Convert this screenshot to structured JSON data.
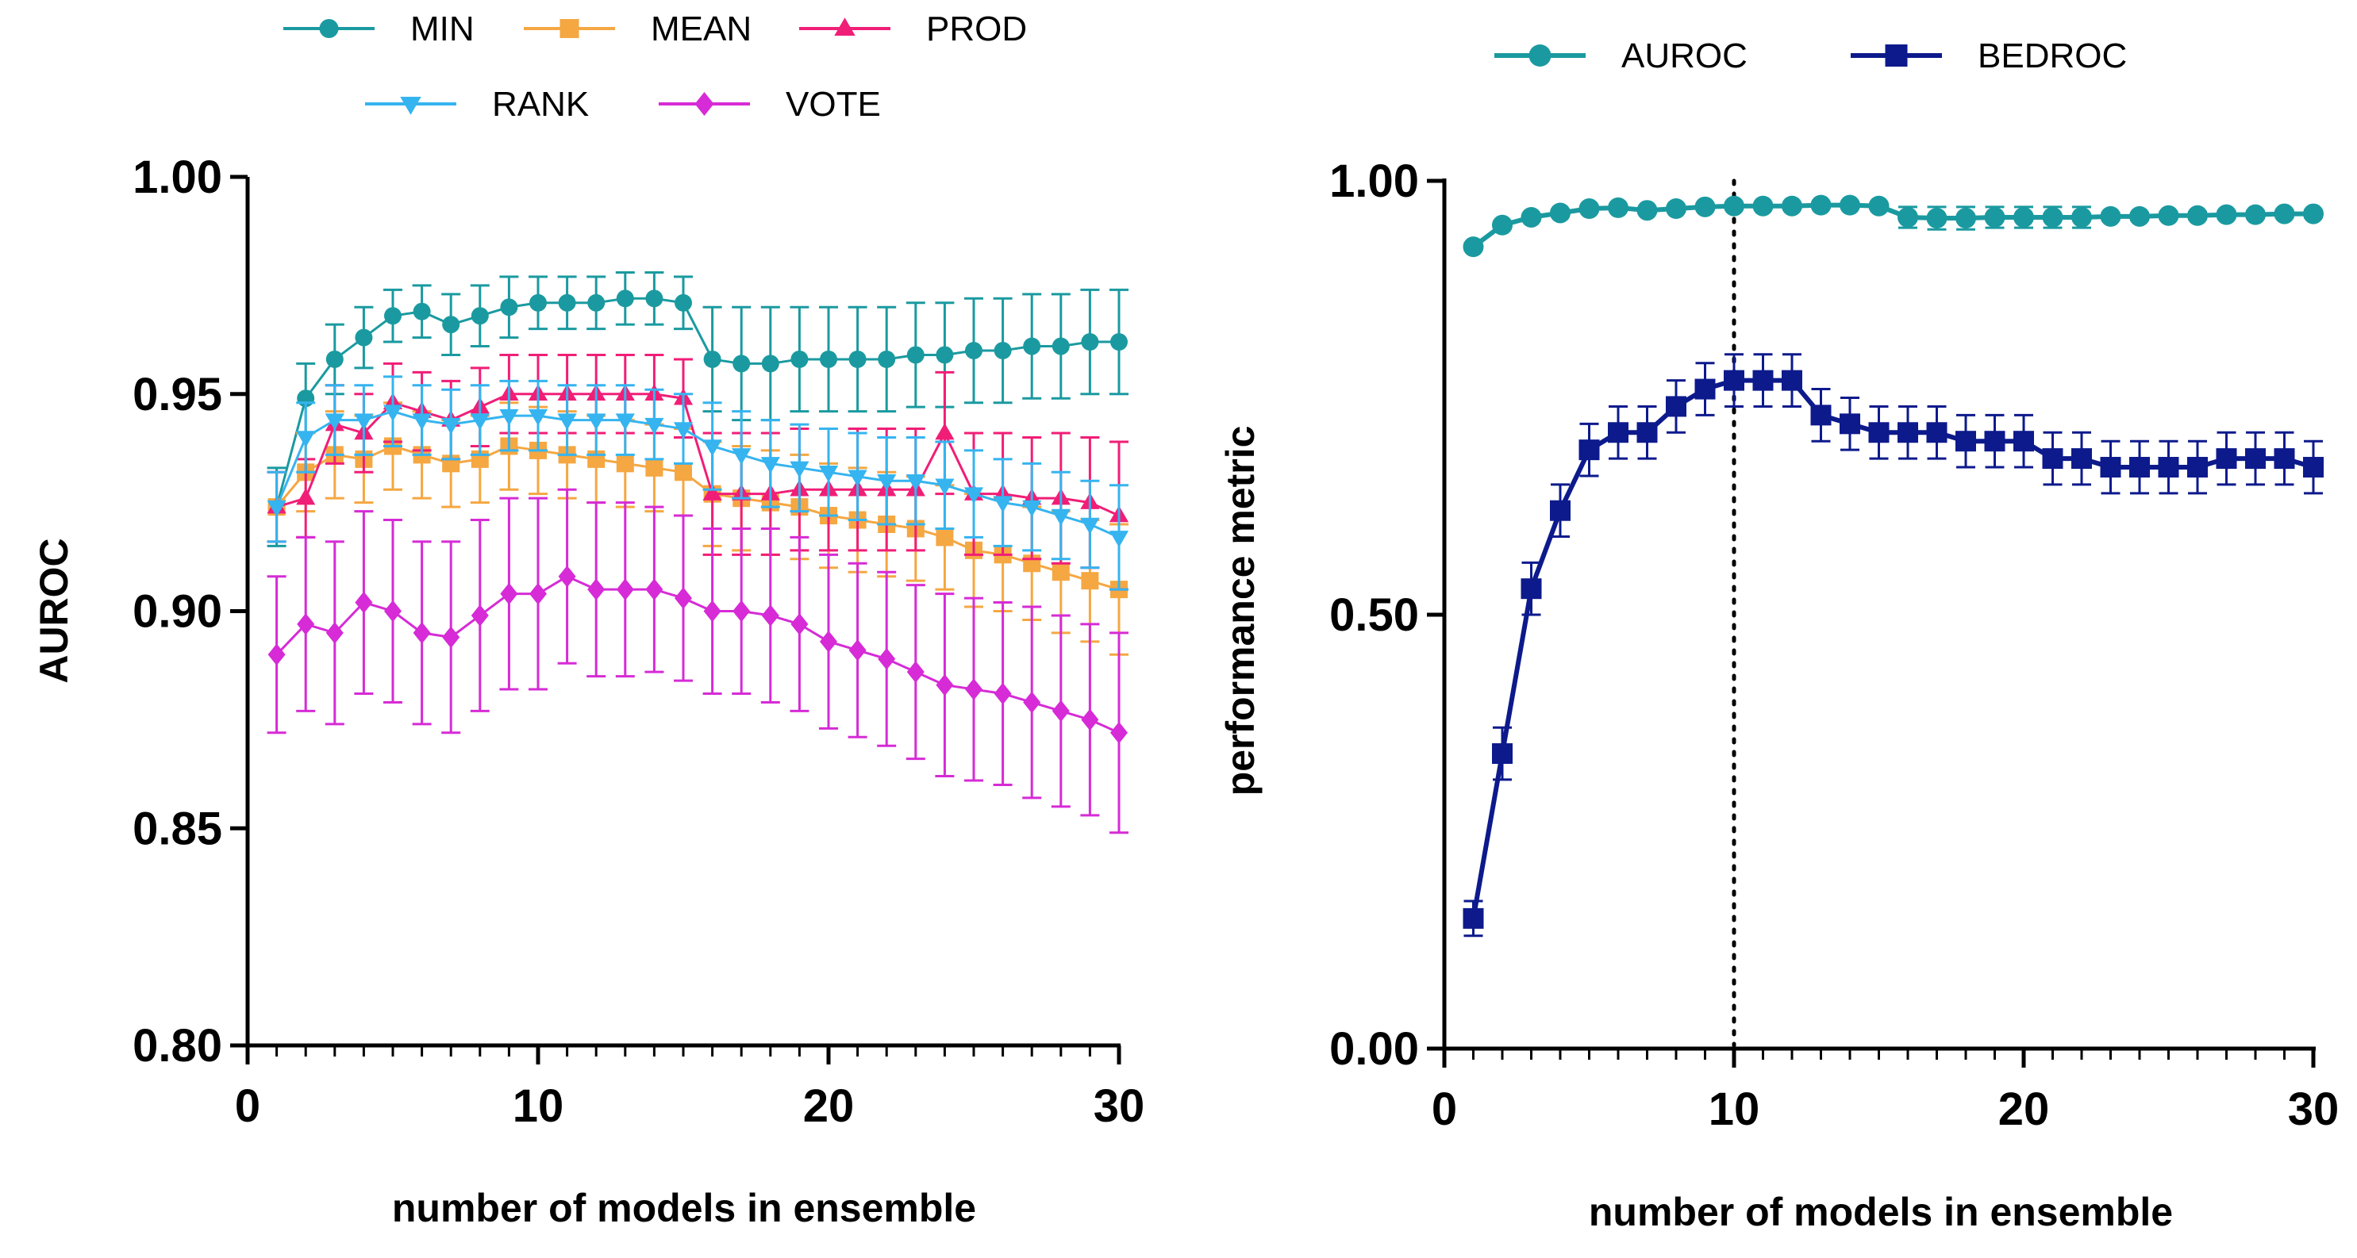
{
  "chart_data": [
    {
      "type": "line",
      "xlabel": "number of models in ensemble",
      "ylabel": "AUROC",
      "xlim": [
        0,
        30
      ],
      "ylim": [
        0.8,
        1.0
      ],
      "x_ticks": [
        0,
        10,
        20,
        30
      ],
      "x_tick_labels": [
        "0",
        "10",
        "20",
        "30"
      ],
      "y_ticks": [
        0.8,
        0.85,
        0.9,
        0.95,
        1.0
      ],
      "y_tick_labels": [
        "0.80",
        "0.85",
        "0.90",
        "0.95",
        "1.00"
      ],
      "legend_position": "top",
      "x": [
        1,
        2,
        3,
        4,
        5,
        6,
        7,
        8,
        9,
        10,
        11,
        12,
        13,
        14,
        15,
        16,
        17,
        18,
        19,
        20,
        21,
        22,
        23,
        24,
        25,
        26,
        27,
        28,
        29,
        30
      ],
      "series": [
        {
          "name": "MIN",
          "color": "#1a9aa0",
          "marker": "circle",
          "values": [
            0.924,
            0.949,
            0.958,
            0.963,
            0.968,
            0.969,
            0.966,
            0.968,
            0.97,
            0.971,
            0.971,
            0.971,
            0.972,
            0.972,
            0.971,
            0.958,
            0.957,
            0.957,
            0.958,
            0.958,
            0.958,
            0.958,
            0.959,
            0.959,
            0.96,
            0.96,
            0.961,
            0.961,
            0.962,
            0.962
          ],
          "errors": [
            0.009,
            0.008,
            0.008,
            0.007,
            0.006,
            0.006,
            0.007,
            0.007,
            0.007,
            0.006,
            0.006,
            0.006,
            0.006,
            0.006,
            0.006,
            0.012,
            0.013,
            0.013,
            0.012,
            0.012,
            0.012,
            0.012,
            0.012,
            0.012,
            0.012,
            0.012,
            0.012,
            0.012,
            0.012,
            0.012
          ]
        },
        {
          "name": "MEAN",
          "color": "#f5a742",
          "marker": "square",
          "values": [
            0.924,
            0.932,
            0.936,
            0.935,
            0.938,
            0.936,
            0.934,
            0.935,
            0.938,
            0.937,
            0.936,
            0.935,
            0.934,
            0.933,
            0.932,
            0.927,
            0.926,
            0.925,
            0.924,
            0.922,
            0.921,
            0.92,
            0.919,
            0.917,
            0.914,
            0.913,
            0.911,
            0.909,
            0.907,
            0.905
          ],
          "errors": [
            0.008,
            0.009,
            0.01,
            0.01,
            0.01,
            0.01,
            0.01,
            0.01,
            0.01,
            0.01,
            0.01,
            0.01,
            0.01,
            0.01,
            0.01,
            0.012,
            0.012,
            0.012,
            0.012,
            0.012,
            0.012,
            0.012,
            0.012,
            0.012,
            0.013,
            0.013,
            0.013,
            0.014,
            0.014,
            0.015
          ]
        },
        {
          "name": "PROD",
          "color": "#f01e77",
          "marker": "triangle-up",
          "values": [
            0.924,
            0.926,
            0.943,
            0.941,
            0.948,
            0.946,
            0.944,
            0.947,
            0.95,
            0.95,
            0.95,
            0.95,
            0.95,
            0.95,
            0.949,
            0.927,
            0.927,
            0.927,
            0.928,
            0.928,
            0.928,
            0.928,
            0.928,
            0.941,
            0.927,
            0.927,
            0.926,
            0.926,
            0.925,
            0.922
          ],
          "errors": [
            0.008,
            0.009,
            0.009,
            0.009,
            0.009,
            0.009,
            0.009,
            0.009,
            0.009,
            0.009,
            0.009,
            0.009,
            0.009,
            0.009,
            0.009,
            0.014,
            0.014,
            0.014,
            0.014,
            0.014,
            0.014,
            0.014,
            0.014,
            0.014,
            0.014,
            0.014,
            0.014,
            0.015,
            0.015,
            0.017
          ]
        },
        {
          "name": "RANK",
          "color": "#35b4f0",
          "marker": "triangle-down",
          "values": [
            0.924,
            0.94,
            0.944,
            0.944,
            0.946,
            0.944,
            0.943,
            0.944,
            0.945,
            0.945,
            0.944,
            0.944,
            0.944,
            0.943,
            0.942,
            0.938,
            0.936,
            0.934,
            0.933,
            0.932,
            0.931,
            0.93,
            0.93,
            0.929,
            0.927,
            0.925,
            0.924,
            0.922,
            0.92,
            0.917
          ],
          "errors": [
            0.008,
            0.008,
            0.008,
            0.008,
            0.008,
            0.008,
            0.008,
            0.008,
            0.008,
            0.008,
            0.008,
            0.008,
            0.008,
            0.008,
            0.008,
            0.01,
            0.01,
            0.01,
            0.01,
            0.01,
            0.01,
            0.01,
            0.01,
            0.01,
            0.01,
            0.01,
            0.01,
            0.01,
            0.01,
            0.012
          ]
        },
        {
          "name": "VOTE",
          "color": "#d62bd6",
          "marker": "diamond",
          "values": [
            0.89,
            0.897,
            0.895,
            0.902,
            0.9,
            0.895,
            0.894,
            0.899,
            0.904,
            0.904,
            0.908,
            0.905,
            0.905,
            0.905,
            0.903,
            0.9,
            0.9,
            0.899,
            0.897,
            0.893,
            0.891,
            0.889,
            0.886,
            0.883,
            0.882,
            0.881,
            0.879,
            0.877,
            0.875,
            0.872
          ],
          "errors": [
            0.018,
            0.02,
            0.021,
            0.021,
            0.021,
            0.021,
            0.022,
            0.022,
            0.022,
            0.022,
            0.02,
            0.02,
            0.02,
            0.019,
            0.019,
            0.019,
            0.019,
            0.02,
            0.02,
            0.02,
            0.02,
            0.02,
            0.02,
            0.021,
            0.021,
            0.021,
            0.022,
            0.022,
            0.022,
            0.023
          ]
        }
      ]
    },
    {
      "type": "line",
      "xlabel": "number of models in ensemble",
      "ylabel": "performance metric",
      "xlim": [
        0,
        30
      ],
      "ylim": [
        0.0,
        1.0
      ],
      "x_ticks": [
        0,
        10,
        20,
        30
      ],
      "x_tick_labels": [
        "0",
        "10",
        "20",
        "30"
      ],
      "y_ticks": [
        0.0,
        0.5,
        1.0
      ],
      "y_tick_labels": [
        "0.00",
        "0.50",
        "1.00"
      ],
      "reference_line": {
        "x": 10,
        "style": "dotted"
      },
      "legend_position": "top",
      "x": [
        1,
        2,
        3,
        4,
        5,
        6,
        7,
        8,
        9,
        10,
        11,
        12,
        13,
        14,
        15,
        16,
        17,
        18,
        19,
        20,
        21,
        22,
        23,
        24,
        25,
        26,
        27,
        28,
        29,
        30
      ],
      "series": [
        {
          "name": "AUROC",
          "color": "#1a9aa0",
          "marker": "circle",
          "values": [
            0.924,
            0.949,
            0.958,
            0.963,
            0.968,
            0.969,
            0.966,
            0.968,
            0.97,
            0.971,
            0.971,
            0.971,
            0.972,
            0.972,
            0.971,
            0.958,
            0.957,
            0.957,
            0.958,
            0.958,
            0.958,
            0.958,
            0.959,
            0.959,
            0.96,
            0.96,
            0.961,
            0.961,
            0.962,
            0.962
          ],
          "errors": [
            0.004,
            0.004,
            0.004,
            0.004,
            0.003,
            0.003,
            0.003,
            0.003,
            0.003,
            0.003,
            0.003,
            0.003,
            0.003,
            0.003,
            0.003,
            0.012,
            0.013,
            0.013,
            0.012,
            0.012,
            0.012,
            0.012,
            0.004,
            0.004,
            0.004,
            0.004,
            0.004,
            0.004,
            0.004,
            0.004
          ]
        },
        {
          "name": "BEDROC",
          "color": "#0d1a8c",
          "marker": "square",
          "values": [
            0.15,
            0.34,
            0.53,
            0.62,
            0.69,
            0.71,
            0.71,
            0.74,
            0.76,
            0.77,
            0.77,
            0.77,
            0.73,
            0.72,
            0.71,
            0.71,
            0.71,
            0.7,
            0.7,
            0.7,
            0.68,
            0.68,
            0.67,
            0.67,
            0.67,
            0.67,
            0.68,
            0.68,
            0.68,
            0.67
          ],
          "errors": [
            0.02,
            0.03,
            0.03,
            0.03,
            0.03,
            0.03,
            0.03,
            0.03,
            0.03,
            0.03,
            0.03,
            0.03,
            0.03,
            0.03,
            0.03,
            0.03,
            0.03,
            0.03,
            0.03,
            0.03,
            0.03,
            0.03,
            0.03,
            0.03,
            0.03,
            0.03,
            0.03,
            0.03,
            0.03,
            0.03
          ]
        }
      ]
    }
  ]
}
